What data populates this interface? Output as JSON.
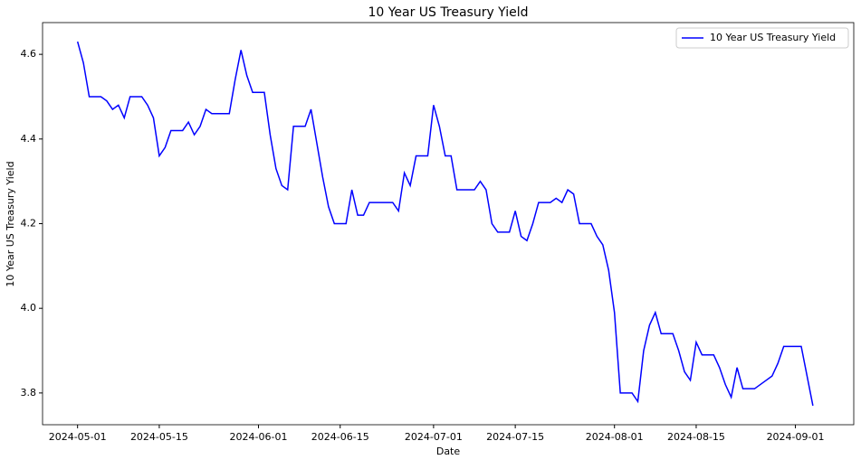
{
  "chart_data": {
    "type": "line",
    "title": "10 Year US Treasury Yield",
    "x_label": "Date",
    "y_label": "10 Year US Treasury Yield",
    "x": [
      "2024-05-01",
      "2024-05-02",
      "2024-05-03",
      "2024-05-05",
      "2024-05-06",
      "2024-05-07",
      "2024-05-08",
      "2024-05-09",
      "2024-05-10",
      "2024-05-12",
      "2024-05-13",
      "2024-05-14",
      "2024-05-15",
      "2024-05-16",
      "2024-05-17",
      "2024-05-19",
      "2024-05-20",
      "2024-05-21",
      "2024-05-22",
      "2024-05-23",
      "2024-05-24",
      "2024-05-27",
      "2024-05-28",
      "2024-05-29",
      "2024-05-30",
      "2024-05-31",
      "2024-06-02",
      "2024-06-03",
      "2024-06-04",
      "2024-06-05",
      "2024-06-06",
      "2024-06-07",
      "2024-06-09",
      "2024-06-10",
      "2024-06-11",
      "2024-06-12",
      "2024-06-13",
      "2024-06-14",
      "2024-06-16",
      "2024-06-17",
      "2024-06-18",
      "2024-06-19",
      "2024-06-20",
      "2024-06-24",
      "2024-06-25",
      "2024-06-26",
      "2024-06-27",
      "2024-06-28",
      "2024-06-30",
      "2024-07-01",
      "2024-07-02",
      "2024-07-03",
      "2024-07-04",
      "2024-07-05",
      "2024-07-07",
      "2024-07-08",
      "2024-07-09",
      "2024-07-10",
      "2024-07-11",
      "2024-07-12",
      "2024-07-14",
      "2024-07-15",
      "2024-07-16",
      "2024-07-17",
      "2024-07-18",
      "2024-07-19",
      "2024-07-21",
      "2024-07-22",
      "2024-07-23",
      "2024-07-24",
      "2024-07-25",
      "2024-07-26",
      "2024-07-28",
      "2024-07-29",
      "2024-07-30",
      "2024-07-31",
      "2024-08-01",
      "2024-08-02",
      "2024-08-04",
      "2024-08-05",
      "2024-08-06",
      "2024-08-07",
      "2024-08-08",
      "2024-08-09",
      "2024-08-11",
      "2024-08-12",
      "2024-08-13",
      "2024-08-14",
      "2024-08-15",
      "2024-08-16",
      "2024-08-18",
      "2024-08-19",
      "2024-08-20",
      "2024-08-21",
      "2024-08-22",
      "2024-08-23",
      "2024-08-25",
      "2024-08-27",
      "2024-08-28",
      "2024-08-29",
      "2024-08-30",
      "2024-09-01",
      "2024-09-02",
      "2024-09-03",
      "2024-09-04"
    ],
    "series": [
      {
        "name": "10 Year US Treasury Yield",
        "color": "#0000ff",
        "values": [
          4.63,
          4.58,
          4.5,
          4.5,
          4.49,
          4.47,
          4.48,
          4.45,
          4.5,
          4.5,
          4.48,
          4.45,
          4.36,
          4.38,
          4.42,
          4.42,
          4.44,
          4.41,
          4.43,
          4.47,
          4.46,
          4.46,
          4.54,
          4.61,
          4.55,
          4.51,
          4.51,
          4.41,
          4.33,
          4.29,
          4.28,
          4.43,
          4.43,
          4.47,
          4.39,
          4.31,
          4.24,
          4.2,
          4.2,
          4.28,
          4.22,
          4.22,
          4.25,
          4.25,
          4.23,
          4.32,
          4.29,
          4.36,
          4.36,
          4.48,
          4.43,
          4.36,
          4.36,
          4.28,
          4.28,
          4.28,
          4.3,
          4.28,
          4.2,
          4.18,
          4.18,
          4.23,
          4.17,
          4.16,
          4.2,
          4.25,
          4.25,
          4.26,
          4.25,
          4.28,
          4.27,
          4.2,
          4.2,
          4.17,
          4.15,
          4.09,
          3.99,
          3.8,
          3.8,
          3.78,
          3.9,
          3.96,
          3.99,
          3.94,
          3.94,
          3.9,
          3.85,
          3.83,
          3.92,
          3.89,
          3.89,
          3.86,
          3.82,
          3.79,
          3.86,
          3.81,
          3.81,
          3.83,
          3.84,
          3.87,
          3.91,
          3.91,
          3.91,
          3.84,
          3.77
        ]
      }
    ],
    "xlim": [
      "2024-04-25",
      "2024-09-11"
    ],
    "xticks": [
      "2024-05-01",
      "2024-05-15",
      "2024-06-01",
      "2024-06-15",
      "2024-07-01",
      "2024-07-15",
      "2024-08-01",
      "2024-08-15",
      "2024-09-01"
    ],
    "ylim": [
      3.725,
      4.675
    ],
    "yticks": [
      {
        "value": 3.8,
        "label": "3.8"
      },
      {
        "value": 4.0,
        "label": "4.0"
      },
      {
        "value": 4.2,
        "label": "4.2"
      },
      {
        "value": 4.4,
        "label": "4.4"
      },
      {
        "value": 4.6,
        "label": "4.6"
      }
    ],
    "legend": "upper right",
    "grid": false
  }
}
